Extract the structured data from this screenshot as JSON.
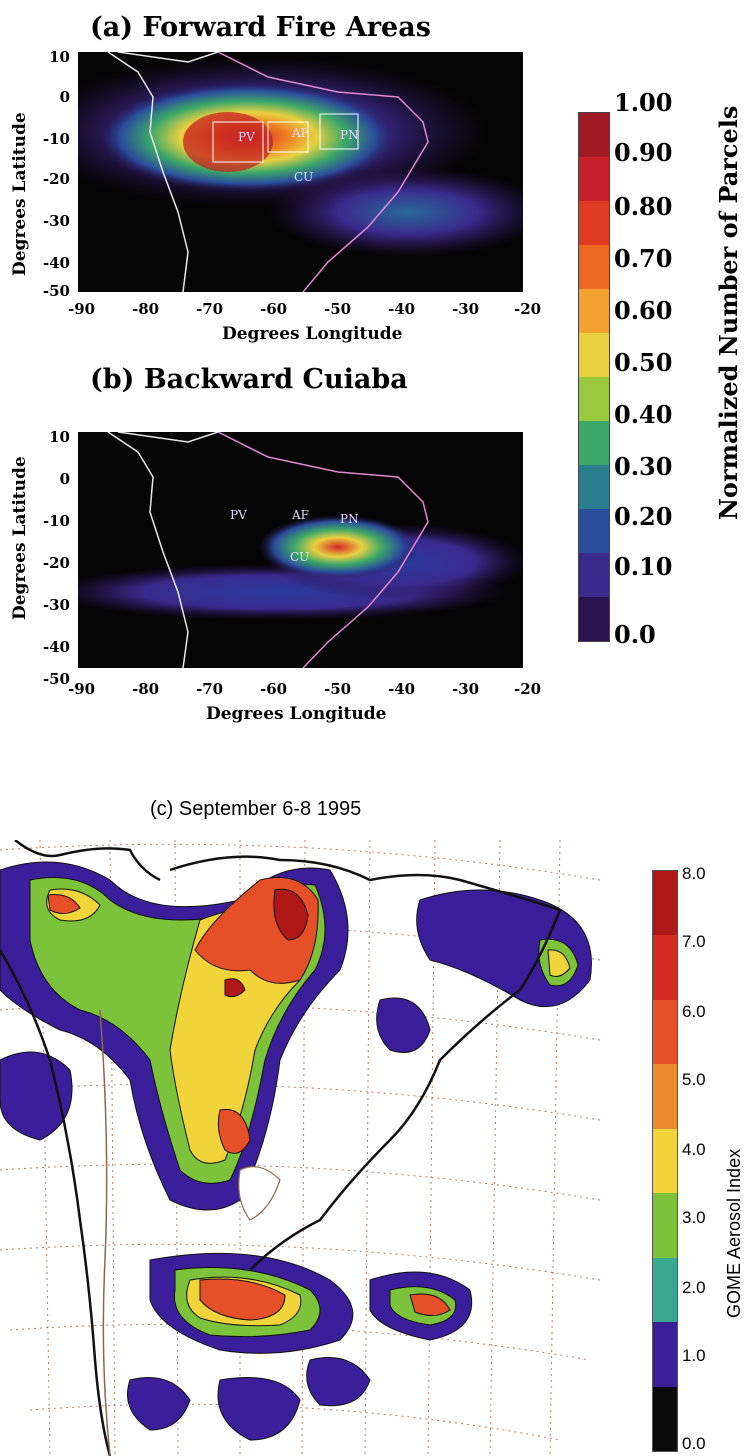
{
  "panel_a": {
    "title": "(a) Forward Fire Areas",
    "ylabel": "Degrees Latitude",
    "xlabel": "Degrees Longitude",
    "yticks": [
      "10",
      "0",
      "-10",
      "-20",
      "-30",
      "-40",
      "-50"
    ],
    "xticks": [
      "-90",
      "-80",
      "-70",
      "-60",
      "-50",
      "-40",
      "-30",
      "-20"
    ],
    "markers": [
      "PV",
      "AF",
      "PN",
      "CU"
    ]
  },
  "panel_b": {
    "title": "(b) Backward Cuiaba",
    "ylabel": "Degrees Latitude",
    "xlabel": "Degrees Longitude",
    "yticks": [
      "10",
      "0",
      "-10",
      "-20",
      "-30",
      "-40",
      "-50"
    ],
    "xticks": [
      "-90",
      "-80",
      "-70",
      "-60",
      "-50",
      "-40",
      "-30",
      "-20"
    ],
    "markers": [
      "PV",
      "AF",
      "PN",
      "CU"
    ]
  },
  "colorbar_ab": {
    "label": "Normalized Number of Parcels",
    "ticks": [
      "1.00",
      "0.90",
      "0.80",
      "0.70",
      "0.60",
      "0.50",
      "0.40",
      "0.30",
      "0.20",
      "0.10",
      "0.0"
    ],
    "colors": [
      "#a01a24",
      "#c8202a",
      "#e03a22",
      "#ec6a20",
      "#f2a030",
      "#e8d040",
      "#9ac83c",
      "#3ca868",
      "#2a7f8f",
      "#2a4d9c",
      "#3a2a8c",
      "#2a1450"
    ]
  },
  "panel_c": {
    "title": "(c)  September 6-8 1995"
  },
  "colorbar_c": {
    "label": "GOME Aerosol Index",
    "ticks": [
      "8.0",
      "7.0",
      "6.0",
      "5.0",
      "4.0",
      "3.0",
      "2.0",
      "1.0",
      "0.0"
    ],
    "colors": [
      "#b01818",
      "#d42a22",
      "#e65028",
      "#ee8a2e",
      "#f0d43a",
      "#7cc23a",
      "#3aa890",
      "#3a1e9a",
      "#0a0a0a"
    ]
  }
}
